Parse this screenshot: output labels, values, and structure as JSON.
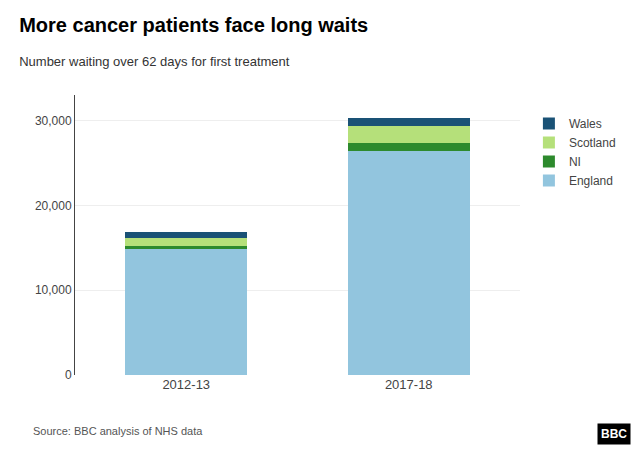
{
  "chart_data": {
    "type": "bar",
    "stacked": true,
    "title": "More cancer patients face long waits",
    "subtitle": "Number waiting over 62 days for first treatment",
    "annotations": [
      "Source: BBC analysis of NHS data",
      "BBC"
    ],
    "categories": [
      "2012-13",
      "2017-18"
    ],
    "series": [
      {
        "name": "England",
        "color": "#92c5de",
        "values": [
          14800,
          26400
        ]
      },
      {
        "name": "NI",
        "color": "#2d8a2d",
        "values": [
          350,
          900
        ]
      },
      {
        "name": "Scotland",
        "color": "#b5e07a",
        "values": [
          1000,
          2100
        ]
      },
      {
        "name": "Wales",
        "color": "#1a5276",
        "values": [
          744,
          930
        ]
      }
    ],
    "ylim": [
      0,
      33000
    ],
    "yticks": [
      0,
      {
        "value": 10000,
        "label": "10,000"
      },
      {
        "value": 20000,
        "label": "20,000"
      },
      {
        "value": 30000,
        "label": "30,000"
      }
    ],
    "grid": true,
    "legend": "right"
  }
}
